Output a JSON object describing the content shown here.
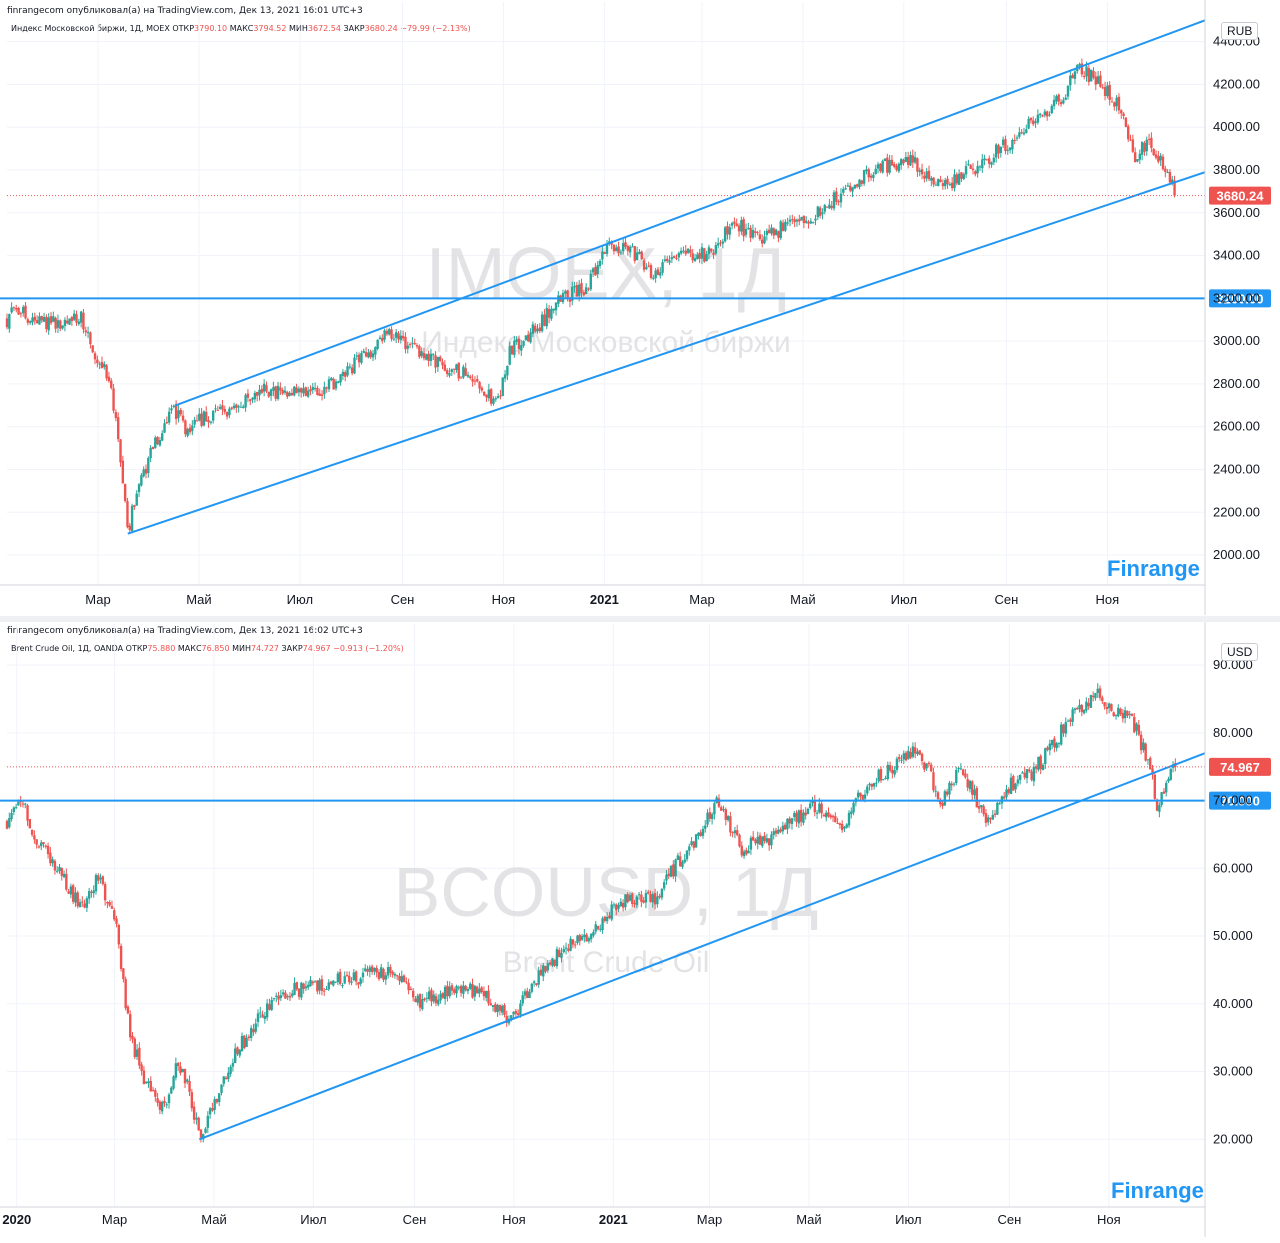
{
  "charts": [
    {
      "publisher_line": "finrangecom опубликовал(а) на TradingView.com, Дек 13, 2021 16:01 UTC+3",
      "ohlc": {
        "name": "Индекс Московской биржи, 1Д, MOEX",
        "open_label": "ОТКР",
        "open": "3790.10",
        "high_label": "МАКС",
        "high": "3794.52",
        "low_label": "МИН",
        "low": "3672.54",
        "close_label": "ЗАКР",
        "close": "3680.24",
        "change": "−79.99 (−2.13%)"
      },
      "watermark_symbol": "IMOEX, 1Д",
      "watermark_name": "Индекс Московской биржи",
      "currency": "RUB",
      "brand": "Finrange",
      "last_price_label": "3680.24",
      "level_label": "3200.00"
    },
    {
      "publisher_line": "finrangecom опубликовал(а) на TradingView.com, Дек 13, 2021 16:02 UTC+3",
      "ohlc": {
        "name": "Brent Crude Oil, 1Д, OANDA",
        "open_label": "ОТКР",
        "open": "75.880",
        "high_label": "МАКС",
        "high": "76.850",
        "low_label": "МИН",
        "low": "74.727",
        "close_label": "ЗАКР",
        "close": "74.967",
        "change": "−0.913 (−1.20%)"
      },
      "watermark_symbol": "BCOUSD, 1Д",
      "watermark_name": "Brent Crude Oil",
      "currency": "USD",
      "brand": "Finrange",
      "last_price_label": "74.967",
      "level_label": "70.000"
    }
  ],
  "chart_data": [
    {
      "type": "candlestick",
      "symbol": "IMOEX",
      "timeframe": "1Д",
      "y_ticks": [
        "2000.00",
        "2200.00",
        "2400.00",
        "2600.00",
        "2800.00",
        "3000.00",
        "3200.00",
        "3400.00",
        "3600.00",
        "3800.00",
        "4000.00",
        "4200.00",
        "4400.00"
      ],
      "ylim": [
        1860,
        4520
      ],
      "x_ticks": [
        "Мар",
        "Май",
        "Июл",
        "Сен",
        "Ноя",
        "2021",
        "Мар",
        "Май",
        "Июл",
        "Сен",
        "Ноя"
      ],
      "xlim": [
        "2020-01-06",
        "2021-12-30"
      ],
      "x_tick_dates": [
        "2020-03-01",
        "2020-05-01",
        "2020-07-01",
        "2020-09-01",
        "2020-11-01",
        "2021-01-01",
        "2021-03-01",
        "2021-05-01",
        "2021-07-01",
        "2021-09-01",
        "2021-11-01"
      ],
      "x_tick_bold": [
        false,
        false,
        false,
        false,
        false,
        true,
        false,
        false,
        false,
        false,
        false
      ],
      "price_path": [
        [
          "2020-01-06",
          3100
        ],
        [
          "2020-01-10",
          3180
        ],
        [
          "2020-01-20",
          3110
        ],
        [
          "2020-02-05",
          3080
        ],
        [
          "2020-02-20",
          3120
        ],
        [
          "2020-02-28",
          2900
        ],
        [
          "2020-03-06",
          2860
        ],
        [
          "2020-03-12",
          2650
        ],
        [
          "2020-03-16",
          2350
        ],
        [
          "2020-03-19",
          2110
        ],
        [
          "2020-03-25",
          2330
        ],
        [
          "2020-04-05",
          2520
        ],
        [
          "2020-04-15",
          2680
        ],
        [
          "2020-04-25",
          2580
        ],
        [
          "2020-05-05",
          2650
        ],
        [
          "2020-05-20",
          2660
        ],
        [
          "2020-06-05",
          2780
        ],
        [
          "2020-06-20",
          2760
        ],
        [
          "2020-07-05",
          2750
        ],
        [
          "2020-07-20",
          2800
        ],
        [
          "2020-08-01",
          2880
        ],
        [
          "2020-08-15",
          2960
        ],
        [
          "2020-08-25",
          3050
        ],
        [
          "2020-09-05",
          2980
        ],
        [
          "2020-09-20",
          2900
        ],
        [
          "2020-10-05",
          2860
        ],
        [
          "2020-10-20",
          2780
        ],
        [
          "2020-10-28",
          2700
        ],
        [
          "2020-11-05",
          2950
        ],
        [
          "2020-11-20",
          3050
        ],
        [
          "2020-12-05",
          3200
        ],
        [
          "2020-12-20",
          3250
        ],
        [
          "2021-01-05",
          3450
        ],
        [
          "2021-01-20",
          3400
        ],
        [
          "2021-02-01",
          3300
        ],
        [
          "2021-02-15",
          3420
        ],
        [
          "2021-03-05",
          3400
        ],
        [
          "2021-03-20",
          3560
        ],
        [
          "2021-04-05",
          3460
        ],
        [
          "2021-04-20",
          3540
        ],
        [
          "2021-05-05",
          3580
        ],
        [
          "2021-05-20",
          3660
        ],
        [
          "2021-06-05",
          3760
        ],
        [
          "2021-06-20",
          3820
        ],
        [
          "2021-07-05",
          3860
        ],
        [
          "2021-07-15",
          3780
        ],
        [
          "2021-07-25",
          3720
        ],
        [
          "2021-08-10",
          3800
        ],
        [
          "2021-08-25",
          3880
        ],
        [
          "2021-09-10",
          3980
        ],
        [
          "2021-09-25",
          4060
        ],
        [
          "2021-10-05",
          4150
        ],
        [
          "2021-10-15",
          4280
        ],
        [
          "2021-10-28",
          4200
        ],
        [
          "2021-11-08",
          4100
        ],
        [
          "2021-11-18",
          3860
        ],
        [
          "2021-11-25",
          3930
        ],
        [
          "2021-12-02",
          3850
        ],
        [
          "2021-12-08",
          3760
        ],
        [
          "2021-12-13",
          3680.24
        ]
      ],
      "level_line": 3200,
      "channel": {
        "upper": [
          [
            "2020-04-17",
            2700
          ],
          [
            "2021-12-30",
            4500
          ]
        ],
        "lower": [
          [
            "2020-03-19",
            2100
          ],
          [
            "2021-12-30",
            3790
          ]
        ]
      },
      "last_price": 3680.24,
      "colors": {
        "up": "#26a69a",
        "down": "#ef5350",
        "lines": "#2196f3",
        "last": "#ef5350"
      }
    },
    {
      "type": "candlestick",
      "symbol": "BCOUSD",
      "timeframe": "1Д",
      "y_ticks": [
        "20.000",
        "30.000",
        "40.000",
        "50.000",
        "60.000",
        "70.000",
        "80.000",
        "90.000"
      ],
      "ylim": [
        10,
        94
      ],
      "x_ticks": [
        "2020",
        "Мар",
        "Май",
        "Июл",
        "Сен",
        "Ноя",
        "2021",
        "Мар",
        "Май",
        "Июл",
        "Сен",
        "Ноя"
      ],
      "xlim": [
        "2019-12-26",
        "2021-12-30"
      ],
      "x_tick_dates": [
        "2020-01-01",
        "2020-03-01",
        "2020-05-01",
        "2020-07-01",
        "2020-09-01",
        "2020-11-01",
        "2021-01-01",
        "2021-03-01",
        "2021-05-01",
        "2021-07-01",
        "2021-09-01",
        "2021-11-01"
      ],
      "x_tick_bold": [
        true,
        false,
        false,
        false,
        false,
        false,
        true,
        false,
        false,
        false,
        false,
        false
      ],
      "price_path": [
        [
          "2019-12-26",
          67
        ],
        [
          "2020-01-06",
          70
        ],
        [
          "2020-01-10",
          65
        ],
        [
          "2020-01-25",
          60
        ],
        [
          "2020-02-10",
          54
        ],
        [
          "2020-02-20",
          59
        ],
        [
          "2020-03-02",
          52
        ],
        [
          "2020-03-10",
          36
        ],
        [
          "2020-03-20",
          28
        ],
        [
          "2020-04-01",
          24
        ],
        [
          "2020-04-08",
          32
        ],
        [
          "2020-04-15",
          28
        ],
        [
          "2020-04-22",
          20
        ],
        [
          "2020-04-30",
          25
        ],
        [
          "2020-05-15",
          33
        ],
        [
          "2020-06-01",
          39
        ],
        [
          "2020-06-20",
          42
        ],
        [
          "2020-07-10",
          43
        ],
        [
          "2020-07-30",
          44
        ],
        [
          "2020-08-20",
          45
        ],
        [
          "2020-09-05",
          40
        ],
        [
          "2020-09-20",
          42
        ],
        [
          "2020-10-10",
          42
        ],
        [
          "2020-10-30",
          37.5
        ],
        [
          "2020-11-15",
          44
        ],
        [
          "2020-12-01",
          48
        ],
        [
          "2020-12-20",
          51
        ],
        [
          "2021-01-10",
          56
        ],
        [
          "2021-01-25",
          55
        ],
        [
          "2021-02-10",
          61
        ],
        [
          "2021-02-25",
          66
        ],
        [
          "2021-03-05",
          70
        ],
        [
          "2021-03-20",
          63
        ],
        [
          "2021-04-05",
          64
        ],
        [
          "2021-04-20",
          67
        ],
        [
          "2021-05-05",
          69
        ],
        [
          "2021-05-20",
          66
        ],
        [
          "2021-06-05",
          72
        ],
        [
          "2021-06-20",
          75
        ],
        [
          "2021-07-05",
          77
        ],
        [
          "2021-07-15",
          74
        ],
        [
          "2021-07-20",
          69
        ],
        [
          "2021-08-01",
          75
        ],
        [
          "2021-08-10",
          71
        ],
        [
          "2021-08-20",
          66
        ],
        [
          "2021-08-30",
          72
        ],
        [
          "2021-09-15",
          74
        ],
        [
          "2021-09-30",
          79
        ],
        [
          "2021-10-10",
          83
        ],
        [
          "2021-10-25",
          86
        ],
        [
          "2021-11-05",
          83
        ],
        [
          "2021-11-15",
          82
        ],
        [
          "2021-11-25",
          76
        ],
        [
          "2021-12-01",
          69
        ],
        [
          "2021-12-06",
          73
        ],
        [
          "2021-12-10",
          76
        ],
        [
          "2021-12-13",
          74.967
        ]
      ],
      "level_line": 70,
      "channel": {
        "lower": [
          [
            "2020-04-22",
            20
          ],
          [
            "2021-12-30",
            77
          ]
        ]
      },
      "last_price": 74.967,
      "colors": {
        "up": "#26a69a",
        "down": "#ef5350",
        "lines": "#2196f3",
        "last": "#ef5350"
      }
    }
  ]
}
